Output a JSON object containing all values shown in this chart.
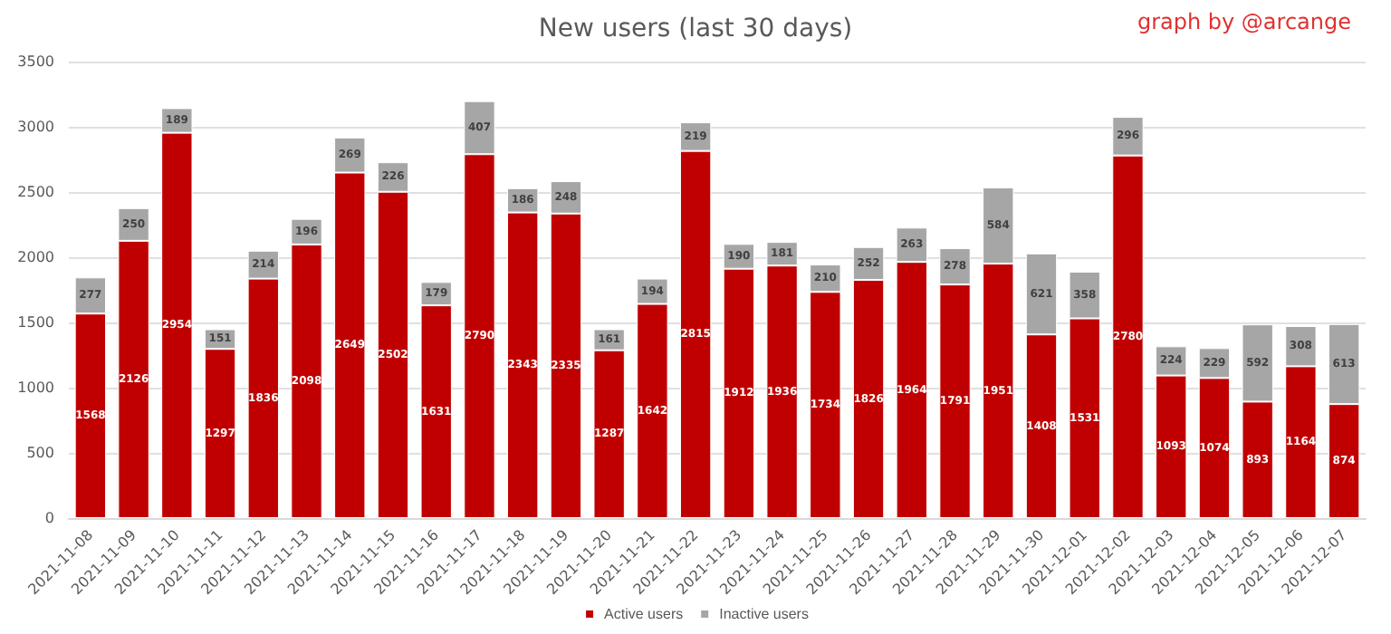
{
  "chart_data": {
    "type": "bar",
    "title": "New users (last 30 days)",
    "annotations": [
      "graph by @arcange"
    ],
    "categories": [
      "2021-11-08",
      "2021-11-09",
      "2021-11-10",
      "2021-11-11",
      "2021-11-12",
      "2021-11-13",
      "2021-11-14",
      "2021-11-15",
      "2021-11-16",
      "2021-11-17",
      "2021-11-18",
      "2021-11-19",
      "2021-11-20",
      "2021-11-21",
      "2021-11-22",
      "2021-11-23",
      "2021-11-24",
      "2021-11-25",
      "2021-11-26",
      "2021-11-27",
      "2021-11-28",
      "2021-11-29",
      "2021-11-30",
      "2021-12-01",
      "2021-12-02",
      "2021-12-03",
      "2021-12-04",
      "2021-12-05",
      "2021-12-06",
      "2021-12-07"
    ],
    "series": [
      {
        "name": "Active users",
        "color": "#c00000",
        "values": [
          1568,
          2126,
          2954,
          1297,
          1836,
          2098,
          2649,
          2502,
          1631,
          2790,
          2343,
          2335,
          1287,
          1642,
          2815,
          1912,
          1936,
          1734,
          1826,
          1964,
          1791,
          1951,
          1408,
          1531,
          2780,
          1093,
          1074,
          893,
          1164,
          874
        ]
      },
      {
        "name": "Inactive users",
        "color": "#a6a6a6",
        "values": [
          277,
          250,
          189,
          151,
          214,
          196,
          269,
          226,
          179,
          407,
          186,
          248,
          161,
          194,
          219,
          190,
          181,
          210,
          252,
          263,
          278,
          584,
          621,
          358,
          296,
          224,
          229,
          592,
          308,
          613
        ]
      }
    ],
    "stacked": true,
    "data_labels": true,
    "ylim": [
      0,
      3500
    ],
    "yticks": [
      0,
      500,
      1000,
      1500,
      2000,
      2500,
      3000,
      3500
    ],
    "grid": "y",
    "legend": "bottom"
  }
}
